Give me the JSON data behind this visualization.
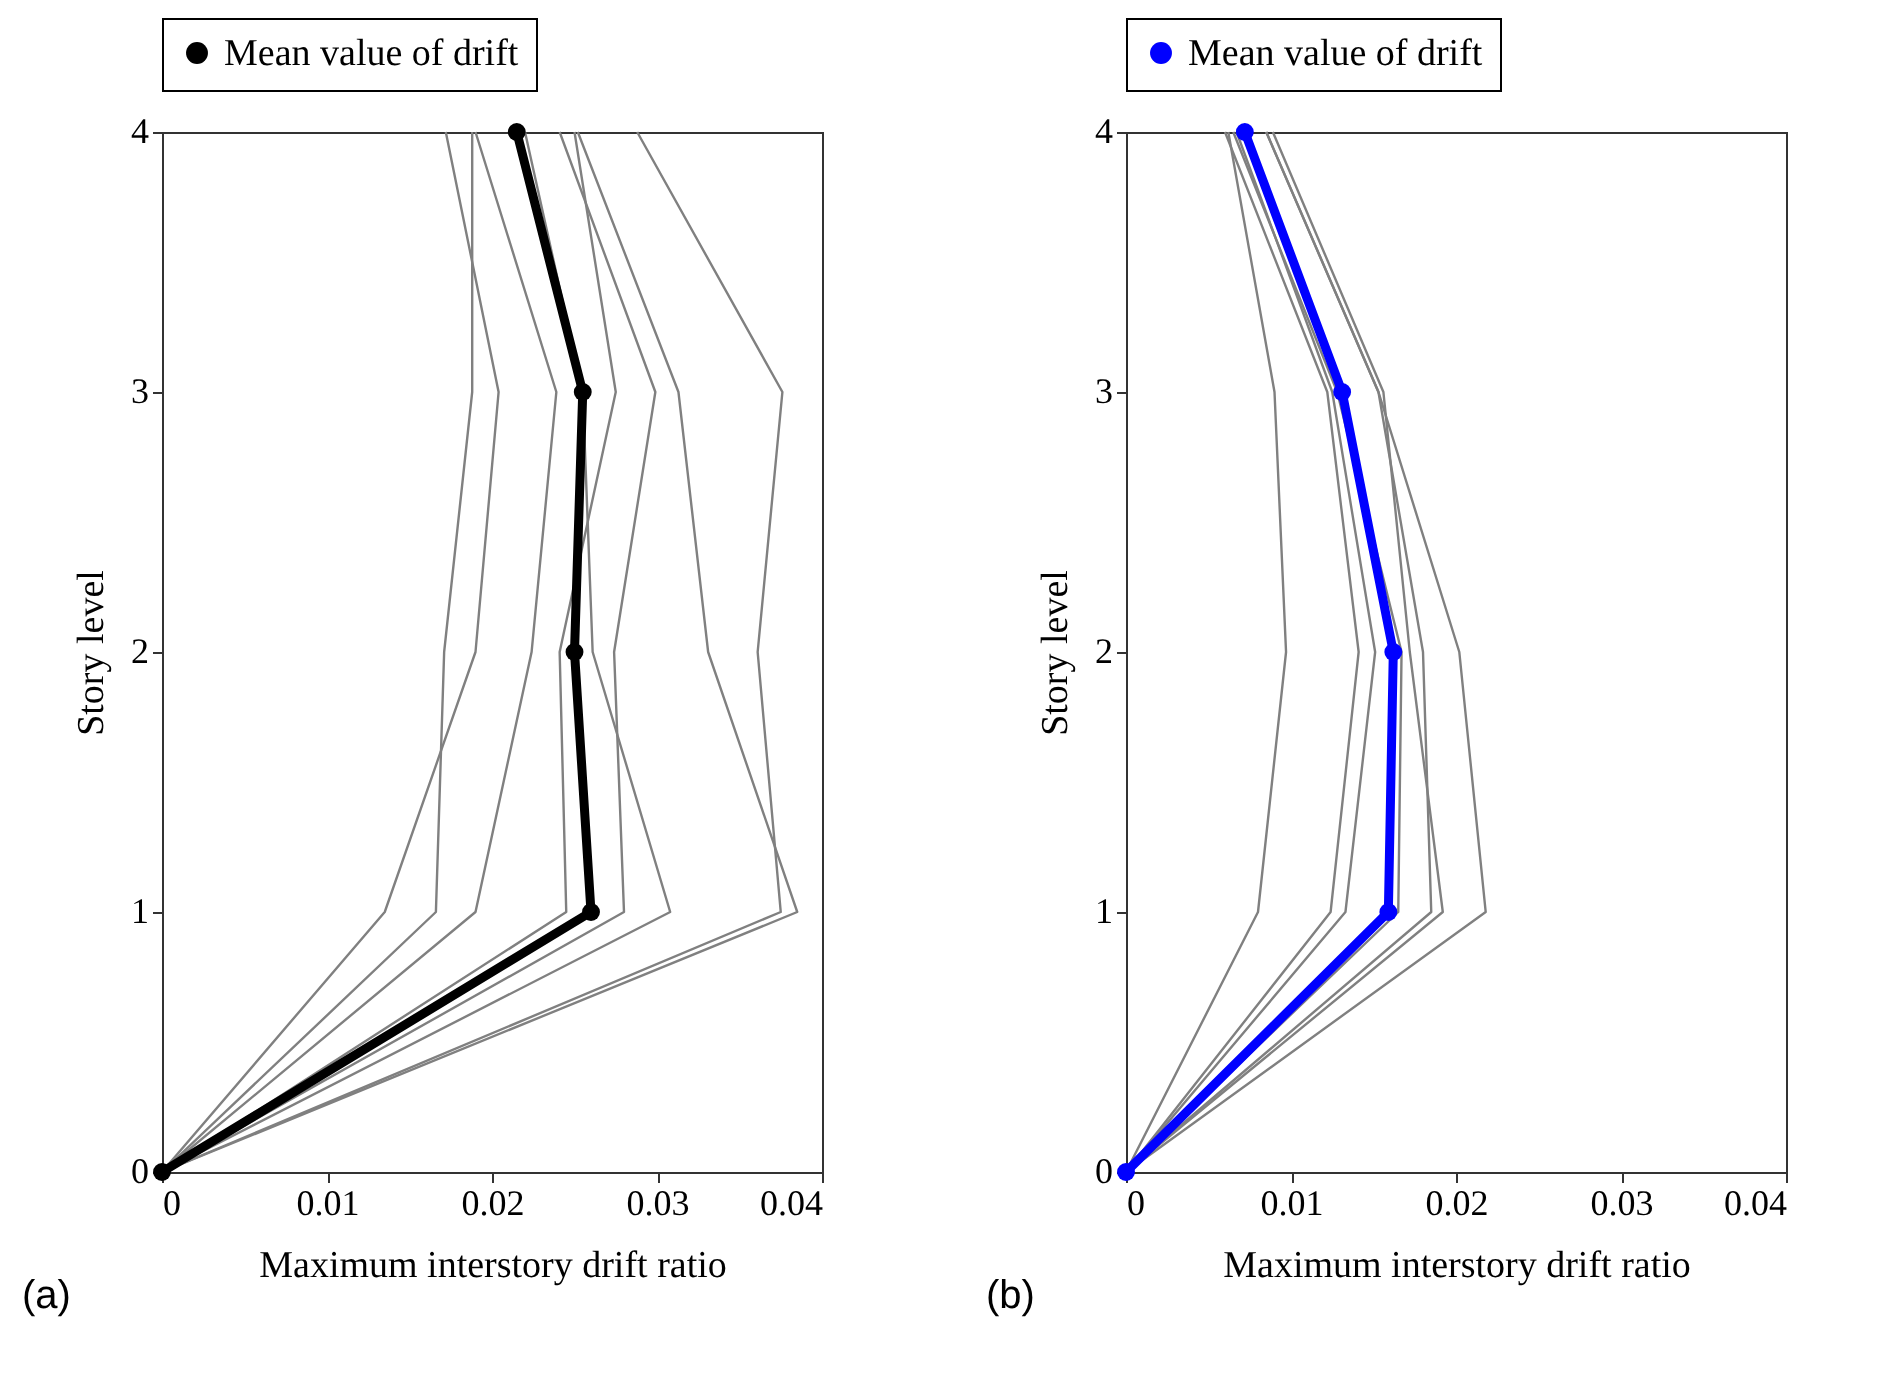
{
  "chart_data": [
    {
      "type": "line",
      "xlabel": "Maximum interstory drift ratio",
      "ylabel": "Story level",
      "annotations": [
        "(a)"
      ],
      "xlim": [
        0,
        0.04
      ],
      "xticks": [
        0,
        0.01,
        0.02,
        0.03,
        0.04
      ],
      "ylim": [
        0,
        4
      ],
      "yticks": [
        0,
        1,
        2,
        3,
        4
      ],
      "legend": "top",
      "series": [
        {
          "color": "#808080",
          "x": [
            0,
            0.0135,
            0.019,
            0.0204,
            0.0172
          ],
          "values": [
            0,
            1,
            2,
            3,
            4
          ]
        },
        {
          "color": "#808080",
          "x": [
            0,
            0.0166,
            0.0171,
            0.0188,
            0.0188
          ],
          "values": [
            0,
            1,
            2,
            3,
            4
          ]
        },
        {
          "color": "#808080",
          "x": [
            0,
            0.019,
            0.0224,
            0.0239,
            0.019
          ],
          "values": [
            0,
            1,
            2,
            3,
            4
          ]
        },
        {
          "color": "#808080",
          "x": [
            0,
            0.0245,
            0.0241,
            0.0275,
            0.025
          ],
          "values": [
            0,
            1,
            2,
            3,
            4
          ]
        },
        {
          "color": "#808080",
          "x": [
            0,
            0.028,
            0.0274,
            0.0299,
            0.0241
          ],
          "values": [
            0,
            1,
            2,
            3,
            4
          ]
        },
        {
          "color": "#808080",
          "x": [
            0,
            0.0308,
            0.0261,
            0.0255,
            0.022
          ],
          "values": [
            0,
            1,
            2,
            3,
            4
          ]
        },
        {
          "color": "#808080",
          "x": [
            0,
            0.0375,
            0.0361,
            0.0376,
            0.0288
          ],
          "values": [
            0,
            1,
            2,
            3,
            4
          ]
        },
        {
          "color": "#808080",
          "x": [
            0,
            0.0385,
            0.0331,
            0.0313,
            0.0252
          ],
          "values": [
            0,
            1,
            2,
            3,
            4
          ]
        },
        {
          "name": "Mean value of drift",
          "color": "#000000",
          "marker": "circle",
          "x": [
            0,
            0.026,
            0.025,
            0.0255,
            0.0215
          ],
          "values": [
            0,
            1,
            2,
            3,
            4
          ]
        }
      ]
    },
    {
      "type": "line",
      "xlabel": "Maximum interstory drift ratio",
      "ylabel": "Story level",
      "annotations": [
        "(b)"
      ],
      "xlim": [
        0,
        0.04
      ],
      "xticks": [
        0,
        0.01,
        0.02,
        0.03,
        0.04
      ],
      "ylim": [
        0,
        4
      ],
      "yticks": [
        0,
        1,
        2,
        3,
        4
      ],
      "legend": "top",
      "series": [
        {
          "color": "#808080",
          "x": [
            0,
            0.008,
            0.0097,
            0.009,
            0.0062
          ],
          "values": [
            0,
            1,
            2,
            3,
            4
          ]
        },
        {
          "color": "#808080",
          "x": [
            0,
            0.0124,
            0.0141,
            0.0122,
            0.006
          ],
          "values": [
            0,
            1,
            2,
            3,
            4
          ]
        },
        {
          "color": "#808080",
          "x": [
            0,
            0.0133,
            0.0151,
            0.0125,
            0.0067
          ],
          "values": [
            0,
            1,
            2,
            3,
            4
          ]
        },
        {
          "color": "#808080",
          "x": [
            0,
            0.0185,
            0.018,
            0.0153,
            0.0085
          ],
          "values": [
            0,
            1,
            2,
            3,
            4
          ]
        },
        {
          "color": "#808080",
          "x": [
            0,
            0.0192,
            0.0172,
            0.0156,
            0.0089
          ],
          "values": [
            0,
            1,
            2,
            3,
            4
          ]
        },
        {
          "color": "#808080",
          "x": [
            0,
            0.0218,
            0.0202,
            0.0153,
            0.0085
          ],
          "values": [
            0,
            1,
            2,
            3,
            4
          ]
        },
        {
          "color": "#808080",
          "x": [
            0,
            0.0165,
            0.0167,
            0.0128,
            0.0065
          ],
          "values": [
            0,
            1,
            2,
            3,
            4
          ]
        },
        {
          "name": "Mean value of drift",
          "color": "#0000ff",
          "marker": "circle",
          "x": [
            0,
            0.0159,
            0.0162,
            0.0131,
            0.0072
          ],
          "values": [
            0,
            1,
            2,
            3,
            4
          ]
        }
      ]
    }
  ]
}
